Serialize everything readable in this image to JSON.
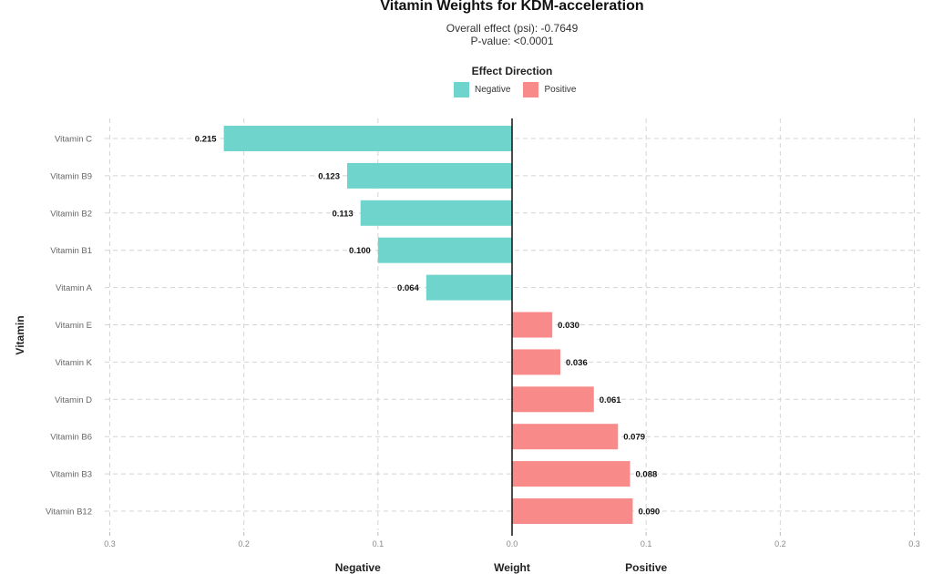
{
  "chart_data": {
    "type": "bar",
    "orientation": "horizontal",
    "title": "Vitamin Weights for KDM-acceleration",
    "subtitle": [
      "Overall effect (psi): -0.7649",
      "P-value: <0.0001"
    ],
    "ylabel": "Vitamin",
    "xlabel": "Weight",
    "xlabel_left": "Negative",
    "xlabel_right": "Positive",
    "xlim": [
      -0.3,
      0.3
    ],
    "xticks": [
      -0.3,
      -0.2,
      -0.1,
      0,
      0.1,
      0.2,
      0.3
    ],
    "xtick_labels": [
      "0.3",
      "0.2",
      "0.1",
      "0.0",
      "0.1",
      "0.2",
      "0.3"
    ],
    "grid": true,
    "legend": {
      "title": "Effect Direction",
      "placement": "top",
      "entries": [
        {
          "name": "Negative",
          "color": "#6fd5cc"
        },
        {
          "name": "Positive",
          "color": "#f88a8a"
        }
      ]
    },
    "categories": [
      "Vitamin C",
      "Vitamin B9",
      "Vitamin B2",
      "Vitamin B1",
      "Vitamin A",
      "Vitamin E",
      "Vitamin K",
      "Vitamin D",
      "Vitamin B6",
      "Vitamin B3",
      "Vitamin B12"
    ],
    "values": [
      -0.215,
      -0.123,
      -0.113,
      -0.1,
      -0.064,
      0.03,
      0.036,
      0.061,
      0.079,
      0.088,
      0.09
    ],
    "data_labels": [
      "0.215",
      "0.123",
      "0.113",
      "0.100",
      "0.064",
      "0.030",
      "0.036",
      "0.061",
      "0.079",
      "0.088",
      "0.090"
    ]
  }
}
